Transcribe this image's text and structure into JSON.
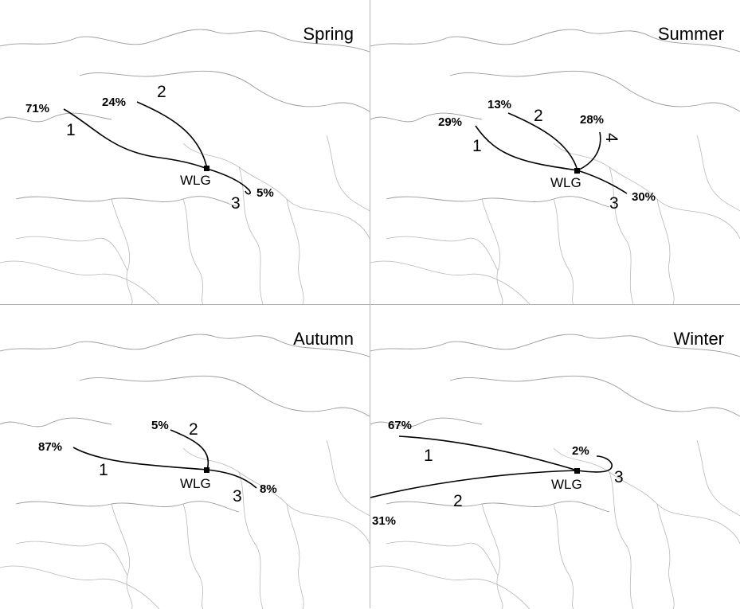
{
  "figure": {
    "station": "WLG",
    "panels": [
      {
        "season": "Spring",
        "clusters": [
          {
            "number": "1",
            "percent": "71%"
          },
          {
            "number": "2",
            "percent": "24%"
          },
          {
            "number": "3",
            "percent": "5%"
          }
        ]
      },
      {
        "season": "Summer",
        "clusters": [
          {
            "number": "1",
            "percent": "29%"
          },
          {
            "number": "2",
            "percent": "13%"
          },
          {
            "number": "3",
            "percent": "30%"
          },
          {
            "number": "4",
            "percent": "28%"
          }
        ]
      },
      {
        "season": "Autumn",
        "clusters": [
          {
            "number": "1",
            "percent": "87%"
          },
          {
            "number": "2",
            "percent": "5%"
          },
          {
            "number": "3",
            "percent": "8%"
          }
        ]
      },
      {
        "season": "Winter",
        "clusters": [
          {
            "number": "1",
            "percent": "67%"
          },
          {
            "number": "2",
            "percent": "31%"
          },
          {
            "number": "3",
            "percent": "2%"
          }
        ]
      }
    ]
  },
  "colors": {
    "trajectory": "#000000",
    "borders": "#9a9a9a",
    "divider": "#b4b4b4"
  }
}
